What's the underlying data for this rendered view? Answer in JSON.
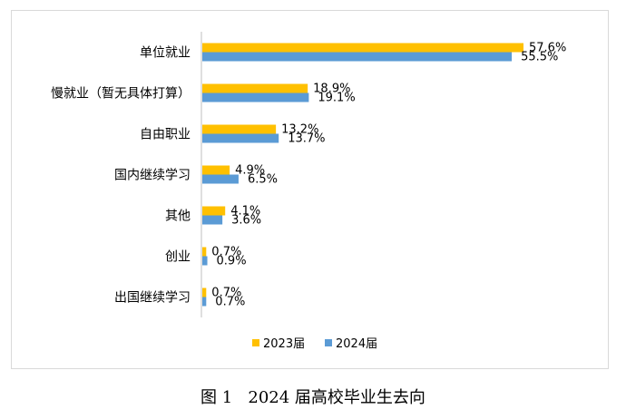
{
  "chart_data": {
    "type": "bar",
    "orientation": "horizontal",
    "categories": [
      "单位就业",
      "慢就业（暂无具体打算）",
      "自由职业",
      "国内继续学习",
      "其他",
      "创业",
      "出国继续学习"
    ],
    "series": [
      {
        "name": "2023届",
        "color": "#FFC000",
        "values": [
          57.6,
          18.9,
          13.2,
          4.9,
          4.1,
          0.7,
          0.7
        ],
        "labels": [
          "57.6%",
          "18.9%",
          "13.2%",
          "4.9%",
          "4.1%",
          "0.7%",
          "0.7%"
        ]
      },
      {
        "name": "2024届",
        "color": "#5B9BD5",
        "values": [
          55.5,
          19.1,
          13.7,
          6.5,
          3.6,
          0.9,
          0.7
        ],
        "labels": [
          "55.5%",
          "19.1%",
          "13.7%",
          "6.5%",
          "3.6%",
          "0.9%",
          "0.7%"
        ]
      }
    ],
    "unit": "%",
    "xlim": [
      0,
      60
    ],
    "grid": false,
    "legend_position": "bottom"
  },
  "caption": {
    "figure_number": "图 1",
    "title": "2024 届高校毕业生去向"
  }
}
